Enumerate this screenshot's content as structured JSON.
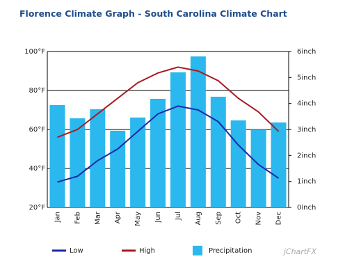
{
  "chart_data": {
    "type": "bar-line",
    "title": "Florence Climate Graph - South Carolina Climate Chart",
    "categories": [
      "Jan",
      "Feb",
      "Mar",
      "Apr",
      "May",
      "Jun",
      "Jul",
      "Aug",
      "Sep",
      "Oct",
      "Nov",
      "Dec"
    ],
    "series": [
      {
        "name": "Low",
        "type": "line",
        "color": "#1a2aa8",
        "values": [
          33,
          36,
          44,
          50,
          59,
          68,
          72,
          70,
          64,
          52,
          42,
          35
        ]
      },
      {
        "name": "High",
        "type": "line",
        "color": "#a81c22",
        "values": [
          56,
          60,
          68,
          76,
          84,
          89,
          92,
          90,
          85,
          76,
          69,
          59
        ]
      },
      {
        "name": "Precipitation",
        "type": "bar",
        "axis": "y2",
        "color": "#2ab8ee",
        "values": [
          3.94,
          3.43,
          3.78,
          2.95,
          3.46,
          4.18,
          5.2,
          5.81,
          4.26,
          3.35,
          3.0,
          3.27
        ]
      }
    ],
    "ylim": [
      20,
      100
    ],
    "yticks": [
      {
        "value": 20,
        "label": "20°F"
      },
      {
        "value": 40,
        "label": "40°F"
      },
      {
        "value": 60,
        "label": "60°F"
      },
      {
        "value": 80,
        "label": "80°F"
      },
      {
        "value": 100,
        "label": "100°F"
      }
    ],
    "y2lim": [
      0,
      6
    ],
    "y2ticks": [
      {
        "value": 0,
        "label": "0inch"
      },
      {
        "value": 1,
        "label": "1inch"
      },
      {
        "value": 2,
        "label": "2inch"
      },
      {
        "value": 3,
        "label": "3inch"
      },
      {
        "value": 4,
        "label": "4inch"
      },
      {
        "value": 5,
        "label": "5inch"
      },
      {
        "value": 6,
        "label": "6inch"
      }
    ],
    "grid": true,
    "legend": "bottom",
    "watermark": "jChartFX"
  }
}
